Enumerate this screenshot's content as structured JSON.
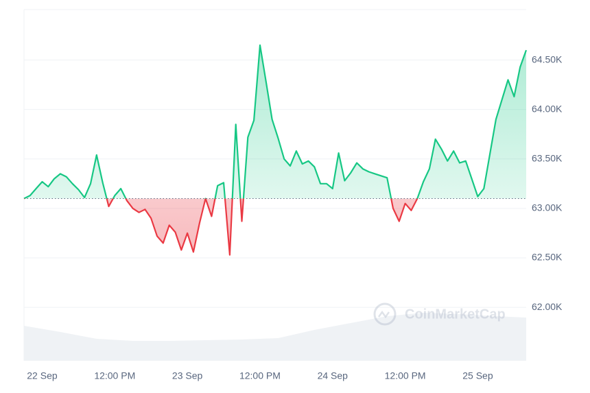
{
  "chart_data": {
    "type": "line",
    "x": [
      -3,
      -2,
      -1,
      0,
      1,
      2,
      3,
      4,
      5,
      6,
      7,
      8,
      9,
      10,
      11,
      12,
      13,
      14,
      15,
      16,
      17,
      18,
      19,
      20,
      21,
      22,
      23,
      24,
      25,
      26,
      27,
      28,
      29,
      30,
      31,
      32,
      33,
      34,
      35,
      36,
      37,
      38,
      39,
      40,
      41,
      42,
      43,
      44,
      45,
      46,
      47,
      48,
      49,
      50,
      51,
      52,
      53,
      54,
      55,
      56,
      57,
      58,
      59,
      60,
      61,
      62,
      63,
      64,
      65,
      66,
      67,
      68,
      69,
      70,
      71,
      72,
      73,
      74,
      75,
      76,
      77,
      78,
      79,
      80
    ],
    "values": [
      63100,
      63130,
      63200,
      63270,
      63220,
      63300,
      63350,
      63320,
      63250,
      63190,
      63110,
      63250,
      63540,
      63260,
      63020,
      63130,
      63200,
      63080,
      63000,
      62960,
      62990,
      62900,
      62720,
      62650,
      62830,
      62760,
      62580,
      62750,
      62560,
      62850,
      63100,
      62920,
      63230,
      63260,
      62530,
      63850,
      62870,
      63720,
      63890,
      64650,
      64280,
      63900,
      63710,
      63500,
      63430,
      63580,
      63450,
      63480,
      63420,
      63250,
      63250,
      63200,
      63560,
      63280,
      63360,
      63460,
      63400,
      63370,
      63350,
      63330,
      63310,
      63000,
      62870,
      63050,
      62980,
      63100,
      63270,
      63400,
      63700,
      63600,
      63480,
      63580,
      63460,
      63480,
      63300,
      63120,
      63200,
      63550,
      63900,
      64100,
      64300,
      64130,
      64430,
      64600
    ],
    "baseline": 63100,
    "up_color": "#16c784",
    "down_color": "#ea3943",
    "xlim": [
      -3,
      80
    ],
    "xticks": [
      {
        "value": 0,
        "label": "22 Sep"
      },
      {
        "value": 12,
        "label": "12:00 PM"
      },
      {
        "value": 24,
        "label": "23 Sep"
      },
      {
        "value": 36,
        "label": "12:00 PM"
      },
      {
        "value": 48,
        "label": "24 Sep"
      },
      {
        "value": 60,
        "label": "12:00 PM"
      },
      {
        "value": 72,
        "label": "25 Sep"
      }
    ],
    "ylim": [
      61460,
      65010
    ],
    "yticks": [
      {
        "value": 62000,
        "label": "62.00K"
      },
      {
        "value": 62500,
        "label": "62.50K"
      },
      {
        "value": 63000,
        "label": "63.00K"
      },
      {
        "value": 63500,
        "label": "63.50K"
      },
      {
        "value": 64000,
        "label": "64.00K"
      },
      {
        "value": 64500,
        "label": "64.50K"
      }
    ],
    "grid": true,
    "volume": {
      "x": [
        -3,
        3,
        9,
        15,
        21,
        27,
        33,
        39,
        45,
        51,
        57,
        63,
        69,
        75,
        80
      ],
      "values": [
        51,
        42,
        32,
        29,
        29,
        30,
        31,
        33,
        45,
        55,
        65,
        70,
        68,
        65,
        63
      ],
      "color": "#eff2f5",
      "y2lim": [
        0,
        100
      ]
    },
    "watermark": "CoinMarketCap"
  }
}
